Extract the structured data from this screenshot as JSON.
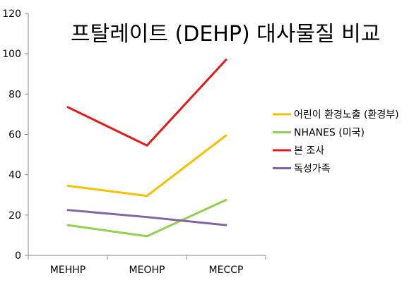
{
  "chart_data": {
    "type": "line",
    "title": "프탈레이트 (DEHP) 대사물질 비교",
    "categories": [
      "MEHHP",
      "MEOHP",
      "MECCP"
    ],
    "series": [
      {
        "name": "어린이 환경노출 (환경부)",
        "color": "#f5c000",
        "values": [
          34.5,
          29.5,
          59.5
        ]
      },
      {
        "name": "NHANES (미국)",
        "color": "#92d050",
        "values": [
          15,
          9.5,
          27.5
        ]
      },
      {
        "name": "본 조사",
        "color": "#e31b1b",
        "values": [
          73.5,
          54.5,
          97
        ]
      },
      {
        "name": "독성가족",
        "color": "#8064a2",
        "values": [
          22.5,
          19,
          15
        ]
      }
    ],
    "ylim": [
      0,
      120
    ],
    "yticks": [
      "0",
      "20",
      "40",
      "60",
      "80",
      "100",
      "120"
    ],
    "grid": false,
    "legend_position": "right"
  }
}
